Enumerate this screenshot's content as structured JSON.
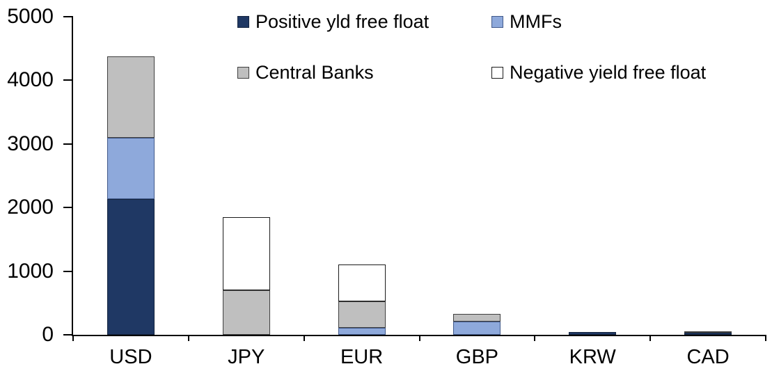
{
  "chart_data": {
    "type": "bar",
    "subtype": "stacked-vertical",
    "title": "",
    "xlabel": "",
    "ylabel": "",
    "categories": [
      "USD",
      "JPY",
      "EUR",
      "GBP",
      "KRW",
      "CAD"
    ],
    "series": [
      {
        "name": "Positive yld free float",
        "color": "#1F3864",
        "border": "#14243f",
        "values": [
          2130,
          0,
          0,
          0,
          40,
          30
        ]
      },
      {
        "name": "MMFs",
        "color": "#8EA9DB",
        "border": "#41598a",
        "values": [
          970,
          0,
          110,
          210,
          0,
          0
        ]
      },
      {
        "name": "Central Banks",
        "color": "#BFBFBF",
        "border": "#3f3f3f",
        "values": [
          1280,
          700,
          420,
          120,
          0,
          30
        ]
      },
      {
        "name": "Negative yield free float",
        "color": "#FFFFFF",
        "border": "#1a1a1a",
        "values": [
          0,
          1150,
          580,
          0,
          0,
          0
        ]
      }
    ],
    "totals": [
      4380,
      1850,
      1110,
      330,
      40,
      60
    ],
    "ylim": [
      0,
      5000
    ],
    "yticks": [
      0,
      1000,
      2000,
      3000,
      4000,
      5000
    ],
    "grid": false,
    "legend_position": "top",
    "legend_order": [
      "Positive yld free float",
      "MMFs",
      "Central Banks",
      "Negative yield free float"
    ],
    "axis_color": "#000000",
    "background_color": "#FFFFFF"
  }
}
